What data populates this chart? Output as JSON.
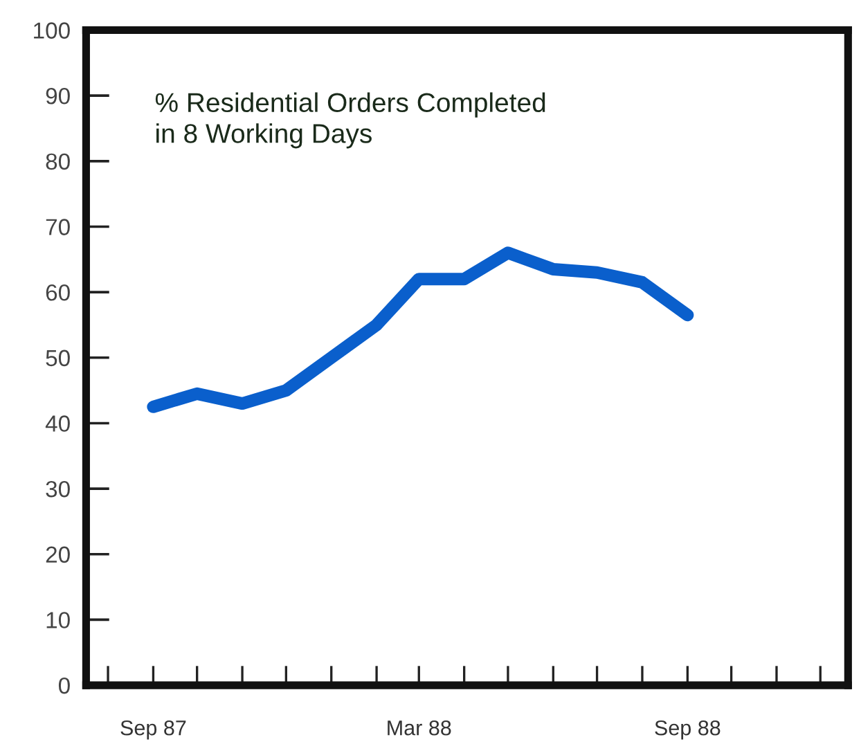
{
  "chart_data": {
    "type": "line",
    "title": "% Residential Orders Completed\nin 8 Working Days",
    "x": [
      "1987-09",
      "1987-10",
      "1987-11",
      "1987-12",
      "1988-01",
      "1988-02",
      "1988-03",
      "1988-04",
      "1988-05",
      "1988-06",
      "1988-07",
      "1988-08",
      "1988-09"
    ],
    "series": [
      {
        "color": "#0a5fcc",
        "values": [
          42.5,
          44.5,
          43,
          45,
          50,
          55,
          62,
          62,
          66,
          63.5,
          63,
          61.5,
          56.5
        ]
      }
    ],
    "xlim": [
      "1987-07-17",
      "1988-12-20"
    ],
    "xticks": [
      {
        "value": "1987-08",
        "label": null
      },
      {
        "value": "1987-09",
        "label": "Sep 87"
      },
      {
        "value": "1987-10",
        "label": null
      },
      {
        "value": "1987-11",
        "label": null
      },
      {
        "value": "1987-12",
        "label": null
      },
      {
        "value": "1988-01",
        "label": null
      },
      {
        "value": "1988-02",
        "label": null
      },
      {
        "value": "1988-03",
        "label": "Mar 88"
      },
      {
        "value": "1988-04",
        "label": null
      },
      {
        "value": "1988-05",
        "label": null
      },
      {
        "value": "1988-06",
        "label": null
      },
      {
        "value": "1988-07",
        "label": null
      },
      {
        "value": "1988-08",
        "label": null
      },
      {
        "value": "1988-09",
        "label": "Sep 88"
      },
      {
        "value": "1988-10",
        "label": null
      },
      {
        "value": "1988-11",
        "label": null
      },
      {
        "value": "1988-12",
        "label": null
      }
    ],
    "ylim": [
      0,
      100
    ],
    "yticks": [
      0,
      10,
      20,
      30,
      40,
      50,
      60,
      70,
      80,
      90,
      100
    ],
    "grid": false,
    "legend": false,
    "marker": "none",
    "line_style": "solid"
  }
}
